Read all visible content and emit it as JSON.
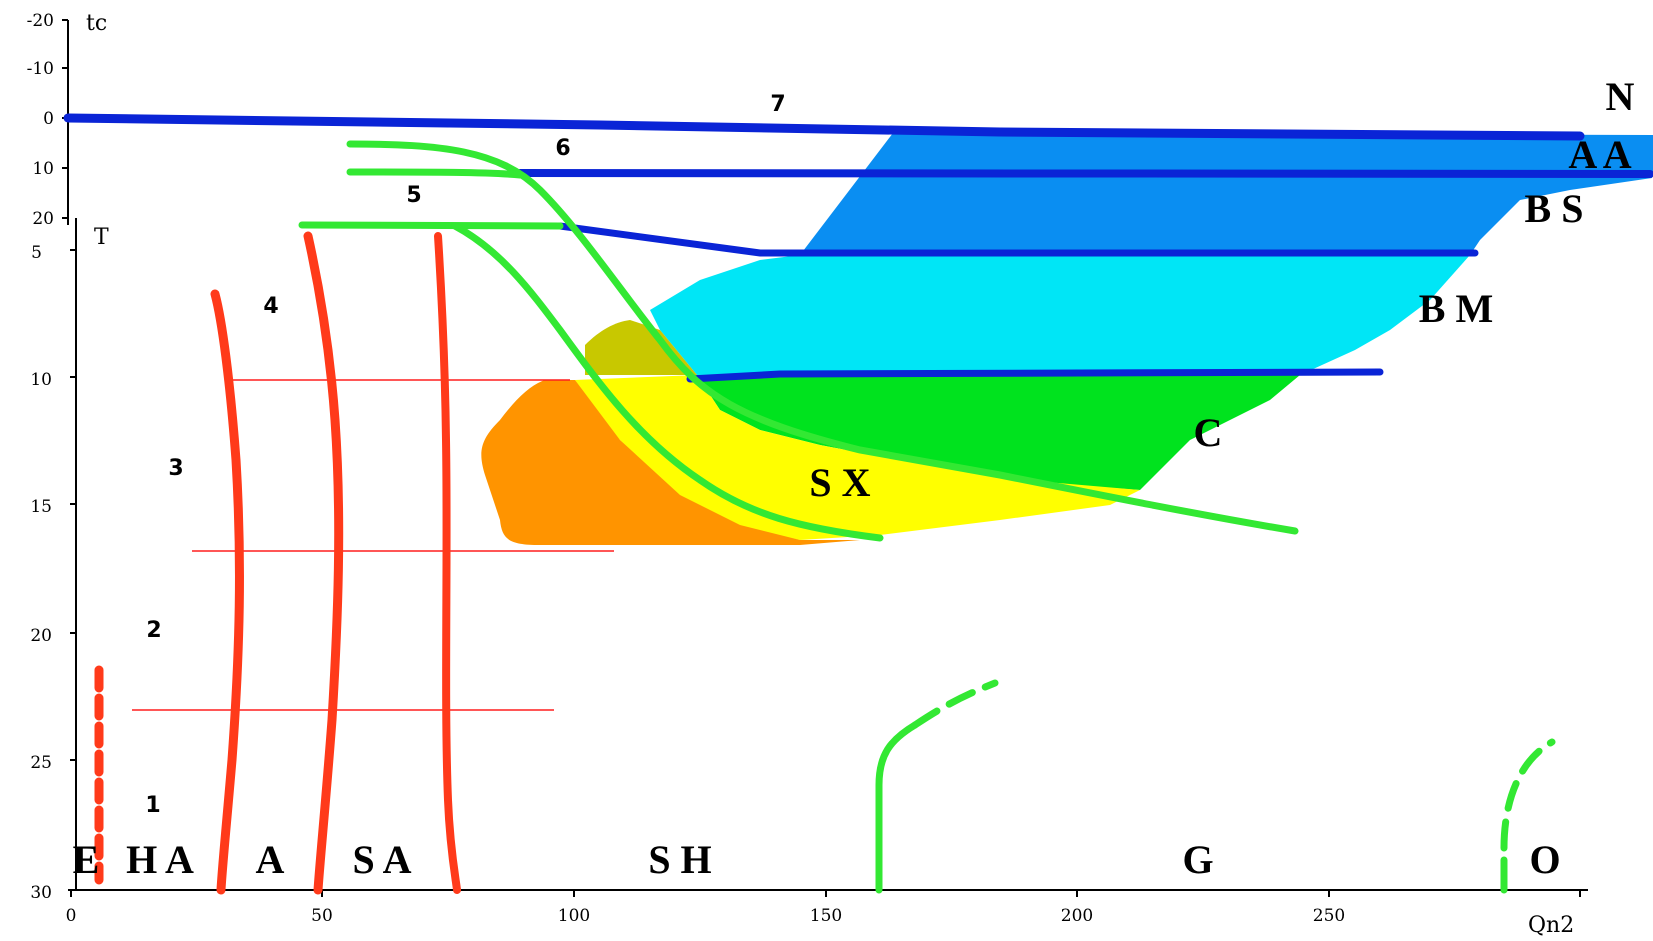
{
  "axes": {
    "top_axis_label": "tc",
    "top_ticks": [
      "-20",
      "-10",
      "0",
      "10",
      "20"
    ],
    "left_axis_label": "T",
    "left_ticks": [
      "5",
      "10",
      "15",
      "20",
      "25",
      "30"
    ],
    "bottom_axis_label": "Qn2",
    "bottom_ticks": [
      "0",
      "50",
      "100",
      "150",
      "200",
      "250"
    ]
  },
  "line_numbers": [
    "1",
    "2",
    "3",
    "4",
    "5",
    "6",
    "7"
  ],
  "zone_labels": {
    "n": "N",
    "aa": "A A",
    "bs": "B S",
    "bm": "B M",
    "c": "C",
    "sx": "S X"
  },
  "bottom_zone_labels": {
    "e": "E",
    "ha": "H A",
    "a": "A",
    "sa": "S A",
    "sh": "S H",
    "g": "G",
    "o": "O"
  },
  "colors": {
    "deep_blue": "#0a24d6",
    "blue_zone": "#0a8ef2",
    "cyan_zone": "#00e6f6",
    "green_zone": "#00e31e",
    "green_line": "#33e833",
    "yellow_zone": "#ffff00",
    "orange_zone": "#ff9400",
    "olive_zone": "#c8c800",
    "red_line": "#ff3a1a",
    "thin_red": "#ff1e1e"
  }
}
